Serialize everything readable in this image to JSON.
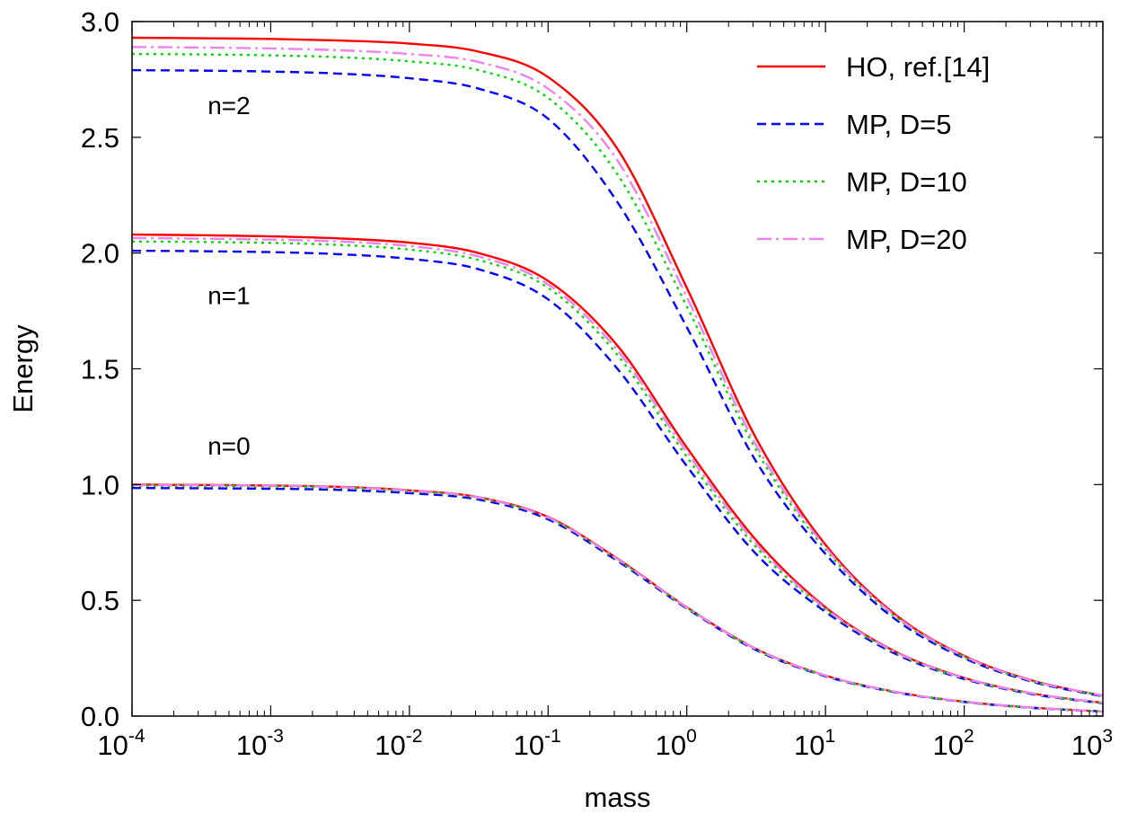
{
  "chart_data": {
    "type": "line",
    "title": "",
    "xlabel": "mass",
    "ylabel": "Energy",
    "xscale": "log",
    "xlim": [
      0.0001,
      1000
    ],
    "ylim": [
      0.0,
      3.0
    ],
    "x_ticks": [
      {
        "value": 0.0001,
        "base": "10",
        "exp": "-4"
      },
      {
        "value": 0.001,
        "base": "10",
        "exp": "-3"
      },
      {
        "value": 0.01,
        "base": "10",
        "exp": "-2"
      },
      {
        "value": 0.1,
        "base": "10",
        "exp": "-1"
      },
      {
        "value": 1,
        "base": "10",
        "exp": "0"
      },
      {
        "value": 10,
        "base": "10",
        "exp": "1"
      },
      {
        "value": 100,
        "base": "10",
        "exp": "2"
      },
      {
        "value": 1000,
        "base": "10",
        "exp": "3"
      }
    ],
    "y_ticks": [
      {
        "value": 0.0,
        "label": "0.0"
      },
      {
        "value": 0.5,
        "label": "0.5"
      },
      {
        "value": 1.0,
        "label": "1.0"
      },
      {
        "value": 1.5,
        "label": "1.5"
      },
      {
        "value": 2.0,
        "label": "2.0"
      },
      {
        "value": 2.5,
        "label": "2.5"
      },
      {
        "value": 3.0,
        "label": "3.0"
      }
    ],
    "grid": false,
    "legend_position": "top-right",
    "annotations": [
      {
        "text": "n=2",
        "x": 0.0005,
        "y": 2.6
      },
      {
        "text": "n=1",
        "x": 0.0005,
        "y": 1.78
      },
      {
        "text": "n=0",
        "x": 0.0005,
        "y": 1.13
      }
    ],
    "x": [
      0.0001,
      0.000316,
      0.001,
      0.00316,
      0.01,
      0.0316,
      0.1,
      0.316,
      1,
      3.16,
      10,
      31.6,
      100,
      316,
      1000
    ],
    "series": [
      {
        "name": "HO, ref.[14]",
        "color": "#ff0000",
        "dash": "solid",
        "curves": [
          {
            "label": "n=0",
            "y": [
              1.0,
              0.998,
              0.996,
              0.99,
              0.975,
              0.945,
              0.86,
              0.68,
              0.47,
              0.29,
              0.175,
              0.105,
              0.062,
              0.036,
              0.02
            ]
          },
          {
            "label": "n=1",
            "y": [
              2.08,
              2.077,
              2.072,
              2.063,
              2.045,
              2.0,
              1.88,
              1.6,
              1.16,
              0.76,
              0.47,
              0.28,
              0.165,
              0.097,
              0.057
            ]
          },
          {
            "label": "n=2",
            "y": [
              2.93,
              2.928,
              2.925,
              2.918,
              2.905,
              2.87,
              2.76,
              2.45,
              1.85,
              1.2,
              0.74,
              0.44,
              0.26,
              0.152,
              0.088
            ]
          }
        ]
      },
      {
        "name": "MP, D=5",
        "color": "#0000ff",
        "dash": "dashed",
        "curves": [
          {
            "label": "n=0",
            "y": [
              0.985,
              0.984,
              0.982,
              0.977,
              0.963,
              0.935,
              0.85,
              0.67,
              0.465,
              0.285,
              0.172,
              0.103,
              0.061,
              0.035,
              0.02
            ]
          },
          {
            "label": "n=1",
            "y": [
              2.01,
              2.008,
              2.004,
              1.995,
              1.975,
              1.93,
              1.8,
              1.5,
              1.08,
              0.7,
              0.45,
              0.27,
              0.16,
              0.094,
              0.055
            ]
          },
          {
            "label": "n=2",
            "y": [
              2.79,
              2.788,
              2.784,
              2.775,
              2.755,
              2.71,
              2.58,
              2.22,
              1.68,
              1.1,
              0.7,
              0.42,
              0.25,
              0.147,
              0.085
            ]
          }
        ]
      },
      {
        "name": "MP, D=10",
        "color": "#00dd00",
        "dash": "dotted",
        "curves": [
          {
            "label": "n=0",
            "y": [
              0.995,
              0.994,
              0.992,
              0.986,
              0.971,
              0.941,
              0.856,
              0.675,
              0.468,
              0.288,
              0.174,
              0.104,
              0.062,
              0.036,
              0.02
            ]
          },
          {
            "label": "n=1",
            "y": [
              2.05,
              2.048,
              2.044,
              2.035,
              2.015,
              1.97,
              1.85,
              1.56,
              1.12,
              0.73,
              0.46,
              0.275,
              0.163,
              0.096,
              0.056
            ]
          },
          {
            "label": "n=2",
            "y": [
              2.86,
              2.858,
              2.854,
              2.846,
              2.828,
              2.79,
              2.67,
              2.34,
              1.77,
              1.15,
              0.72,
              0.43,
              0.255,
              0.15,
              0.087
            ]
          }
        ]
      },
      {
        "name": "MP, D=20",
        "color": "#ee82ee",
        "dash": "dashdot",
        "curves": [
          {
            "label": "n=0",
            "y": [
              0.998,
              0.997,
              0.995,
              0.989,
              0.974,
              0.944,
              0.858,
              0.678,
              0.469,
              0.289,
              0.175,
              0.105,
              0.062,
              0.036,
              0.02
            ]
          },
          {
            "label": "n=1",
            "y": [
              2.065,
              2.062,
              2.058,
              2.05,
              2.03,
              1.985,
              1.865,
              1.58,
              1.14,
              0.745,
              0.465,
              0.278,
              0.164,
              0.097,
              0.057
            ]
          },
          {
            "label": "n=2",
            "y": [
              2.89,
              2.888,
              2.884,
              2.876,
              2.86,
              2.825,
              2.71,
              2.4,
              1.81,
              1.17,
              0.73,
              0.435,
              0.258,
              0.151,
              0.088
            ]
          }
        ]
      }
    ]
  }
}
